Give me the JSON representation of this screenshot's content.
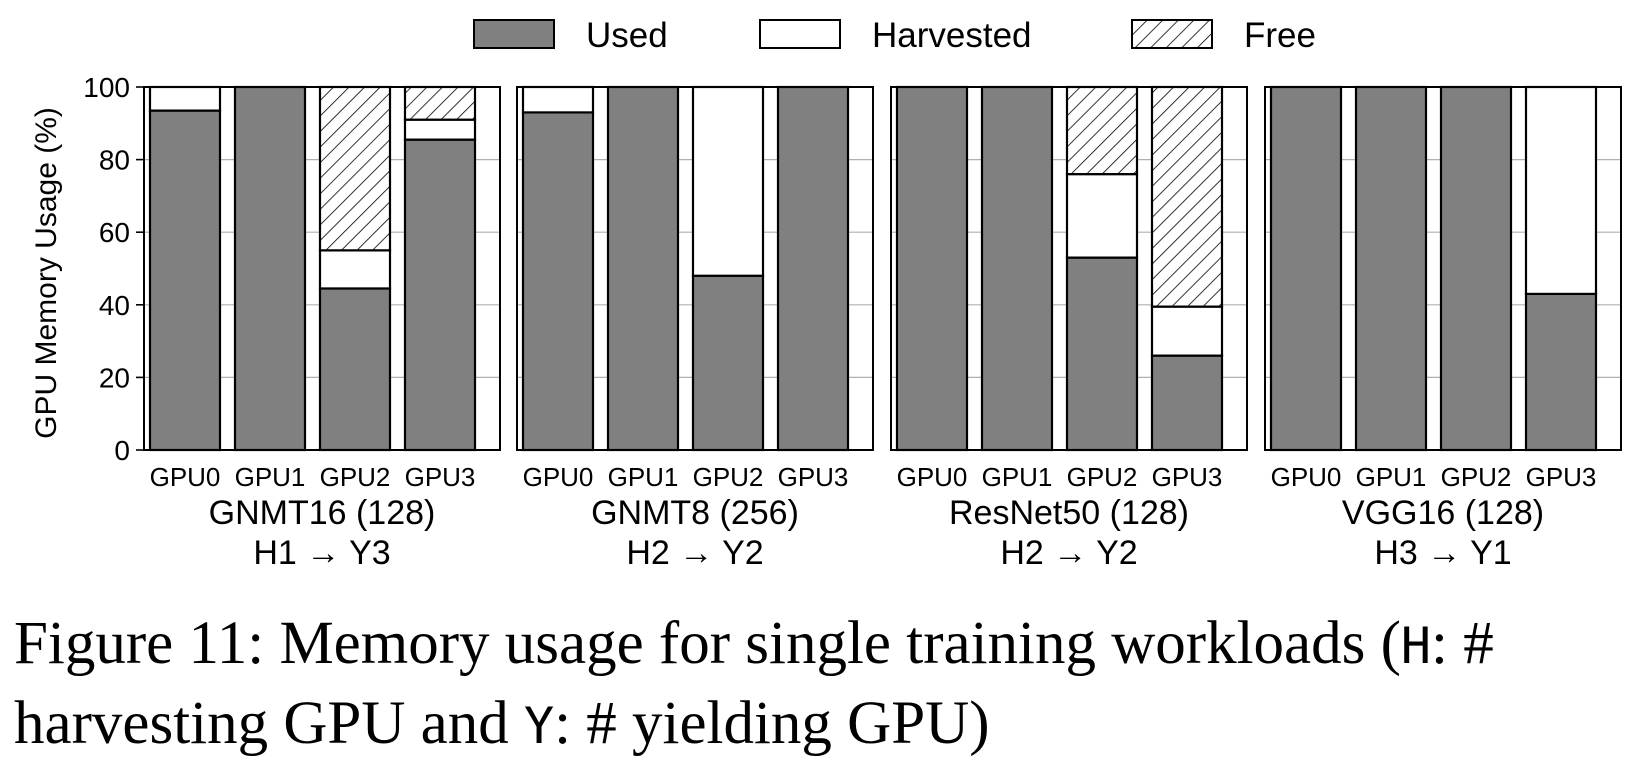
{
  "chart_data": {
    "type": "bar",
    "stacked": true,
    "ylabel": "GPU Memory Usage (%)",
    "ylim": [
      0,
      100
    ],
    "yticks": [
      0,
      20,
      40,
      60,
      80,
      100
    ],
    "grid": true,
    "legend_position": "top-center",
    "legend": [
      {
        "name": "Used",
        "style": "solid",
        "color": "#808080"
      },
      {
        "name": "Harvested",
        "style": "solid",
        "color": "#ffffff"
      },
      {
        "name": "Free",
        "style": "hatched",
        "color": "#ffffff"
      }
    ],
    "panels": [
      {
        "title": "GNMT16 (128)",
        "subtitle": "H1 → Y3",
        "categories": [
          "GPU0",
          "GPU1",
          "GPU2",
          "GPU3"
        ],
        "series": [
          {
            "name": "Used",
            "values": [
              93.5,
              100,
              44.5,
              85.5
            ]
          },
          {
            "name": "Harvested",
            "values": [
              6.5,
              0,
              10.5,
              5.5
            ]
          },
          {
            "name": "Free",
            "values": [
              0,
              0,
              45,
              9
            ]
          }
        ]
      },
      {
        "title": "GNMT8 (256)",
        "subtitle": "H2 → Y2",
        "categories": [
          "GPU0",
          "GPU1",
          "GPU2",
          "GPU3"
        ],
        "series": [
          {
            "name": "Used",
            "values": [
              93,
              100,
              48,
              100
            ]
          },
          {
            "name": "Harvested",
            "values": [
              7,
              0,
              52,
              0
            ]
          },
          {
            "name": "Free",
            "values": [
              0,
              0,
              0,
              0
            ]
          }
        ]
      },
      {
        "title": "ResNet50 (128)",
        "subtitle": "H2 → Y2",
        "categories": [
          "GPU0",
          "GPU1",
          "GPU2",
          "GPU3"
        ],
        "series": [
          {
            "name": "Used",
            "values": [
              100,
              100,
              53,
              26
            ]
          },
          {
            "name": "Harvested",
            "values": [
              0,
              0,
              23,
              13.5
            ]
          },
          {
            "name": "Free",
            "values": [
              0,
              0,
              24,
              60.5
            ]
          }
        ]
      },
      {
        "title": "VGG16 (128)",
        "subtitle": "H3 → Y1",
        "categories": [
          "GPU0",
          "GPU1",
          "GPU2",
          "GPU3"
        ],
        "series": [
          {
            "name": "Used",
            "values": [
              100,
              100,
              100,
              43
            ]
          },
          {
            "name": "Harvested",
            "values": [
              0,
              0,
              0,
              57
            ]
          },
          {
            "name": "Free",
            "values": [
              0,
              0,
              0,
              0
            ]
          }
        ]
      }
    ]
  },
  "caption": {
    "part1": "Figure 11: Memory usage for single training workloads (",
    "code_h": "H",
    "part2": ": # harvesting GPU and ",
    "code_y": "Y",
    "part3": ": # yielding GPU)"
  }
}
